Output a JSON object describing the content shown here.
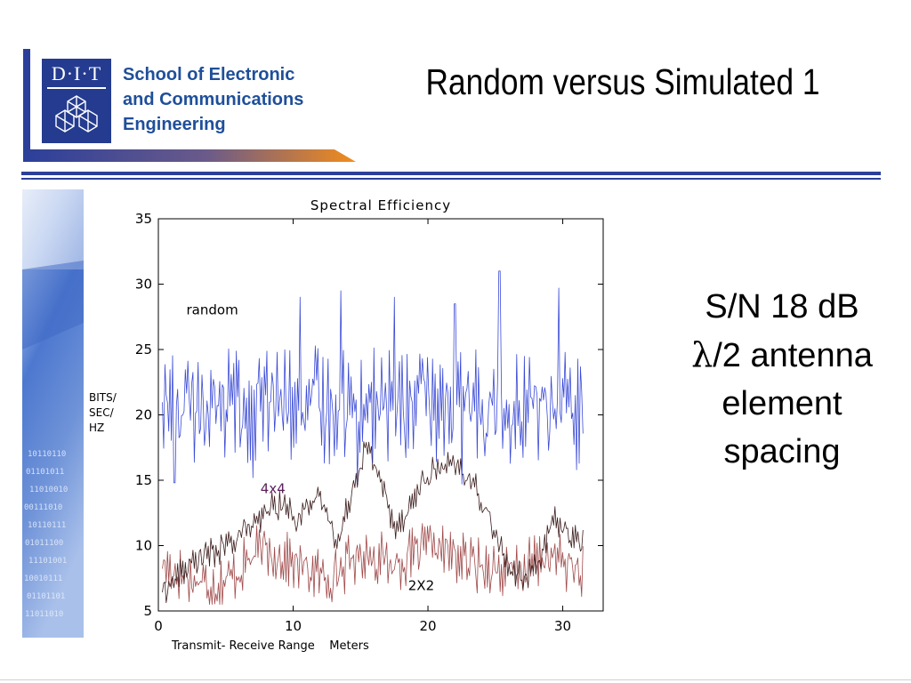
{
  "header": {
    "logo_text": "D·I·T",
    "school_name": "School of Electronic\nand Communications\nEngineering",
    "title": "Random versus Simulated 1"
  },
  "notes": {
    "line1": "S/N 18 dB",
    "line2_symbol": "λ",
    "line2_rest": "/2 antenna",
    "line3": "element",
    "line4": "spacing"
  },
  "colors": {
    "brand_blue": "#2b3f9a",
    "swoosh_orange": "#f28c1c",
    "random_series": "#3b4bd6",
    "four_by_four_series": "#3b1c1c",
    "two_by_two_series": "#a04a4a"
  },
  "chart_data": {
    "type": "line",
    "title": "Spectral Efficiency",
    "xlabel": "Transmit- Receive Range    Meters",
    "ylabel": "BITS/ SEC/ HZ",
    "xlim": [
      0,
      33
    ],
    "ylim": [
      5,
      35
    ],
    "xticks": [
      0,
      10,
      20,
      30
    ],
    "yticks": [
      5,
      10,
      15,
      20,
      25,
      30,
      35
    ],
    "grid": false,
    "annotations": [
      {
        "text": "random",
        "x": 4.0,
        "y": 27.7
      },
      {
        "text": "4x4",
        "x": 8.5,
        "y": 14.0
      },
      {
        "text": "2X2",
        "x": 19.5,
        "y": 6.6
      }
    ],
    "series": [
      {
        "name": "random",
        "style": "noisy",
        "x_range": [
          0.3,
          31.5
        ],
        "spread": 3.3,
        "peaks": [
          [
            10.5,
            29.0
          ],
          [
            13.5,
            29.5
          ],
          [
            17.5,
            29.0
          ],
          [
            22.0,
            28.5
          ],
          [
            25.3,
            31.0
          ],
          [
            29.7,
            29.7
          ]
        ],
        "troughs": [
          [
            1.2,
            14.8
          ],
          [
            7.0,
            15.2
          ],
          [
            14.8,
            14.8
          ],
          [
            22.5,
            14.7
          ],
          [
            31.0,
            15.8
          ]
        ],
        "values": [
          21.0,
          20.5,
          20.5,
          21.0,
          20.5,
          21.0,
          20.5,
          21.0,
          20.5,
          21.0,
          20.5,
          21.0,
          20.5,
          21.0,
          20.5,
          21.0,
          20.5,
          21.0,
          20.5,
          21.0,
          20.5,
          21.0,
          20.5,
          21.0,
          20.5,
          21.0,
          20.5,
          21.0,
          20.5,
          21.0,
          20.5,
          20.5
        ]
      },
      {
        "name": "4x4",
        "style": "noisy",
        "x_range": [
          0.3,
          31.5
        ],
        "spread": 0.9,
        "values": [
          6.5,
          7.5,
          8.5,
          9.2,
          9.5,
          10.2,
          11.2,
          11.5,
          13.0,
          13.0,
          12.0,
          13.8,
          12.8,
          10.2,
          14.5,
          17.5,
          15.5,
          11.5,
          12.5,
          14.5,
          15.7,
          16.0,
          15.8,
          14.5,
          12.5,
          9.5,
          7.5,
          7.8,
          9.5,
          12.0,
          10.8,
          10.0
        ]
      },
      {
        "name": "2X2",
        "style": "noisy",
        "x_range": [
          0.3,
          31.5
        ],
        "spread": 1.6,
        "values": [
          8.5,
          8.0,
          7.5,
          7.2,
          7.0,
          7.5,
          8.5,
          9.5,
          9.5,
          9.0,
          8.5,
          8.0,
          7.5,
          8.0,
          9.0,
          9.5,
          9.0,
          8.5,
          9.0,
          9.5,
          10.0,
          9.5,
          9.0,
          8.5,
          8.5,
          8.0,
          8.0,
          8.5,
          9.0,
          9.0,
          8.5,
          8.0
        ]
      }
    ]
  }
}
